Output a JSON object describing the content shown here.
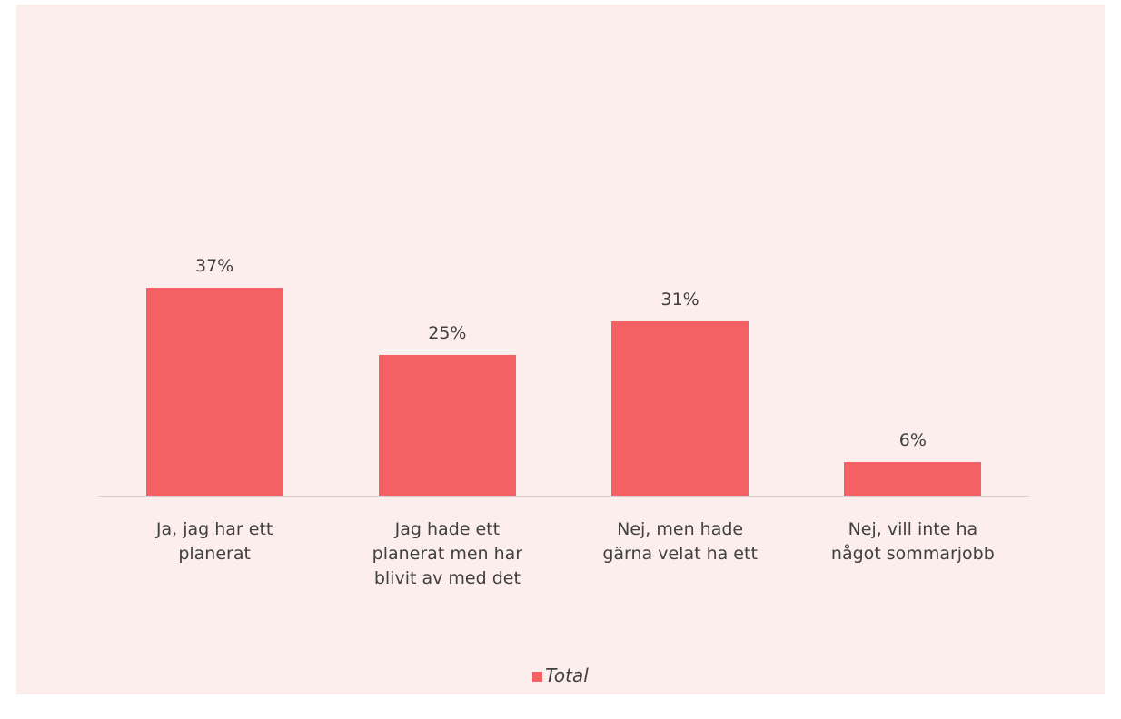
{
  "chart_data": {
    "type": "bar",
    "categories": [
      "Ja, jag har ett planerat",
      "Jag hade ett planerat men har blivit av med det",
      "Nej, men hade gärna velat ha ett",
      "Nej, vill inte ha något sommarjobb"
    ],
    "series": [
      {
        "name": "Total",
        "color": "#f46164",
        "values": [
          37,
          25,
          31,
          6
        ],
        "value_labels": [
          "37%",
          "25%",
          "31%",
          "6%"
        ]
      }
    ],
    "ylim": [
      0,
      40
    ],
    "legend": "bottom"
  }
}
